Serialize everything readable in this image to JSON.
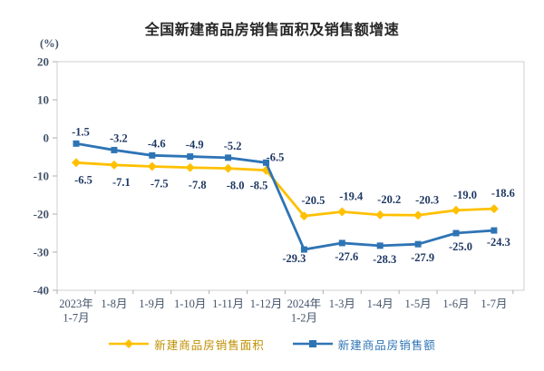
{
  "title": "全国新建商品房销售面积及销售额增速",
  "unit_label": "(%)",
  "colors": {
    "area_series": "#FFC000",
    "amount_series": "#2E74B5",
    "data_label": "#1F3864",
    "axis_label": "#44546A",
    "title_text": "#262626",
    "plot_border": "#D0CECE",
    "axis_tick": "#AFABAB",
    "legend_area_text": "#BF8F00",
    "legend_amount_text": "#2E74B5"
  },
  "chart_data": {
    "type": "line",
    "title": "全国新建商品房销售面积及销售额增速",
    "ylabel": "(%)",
    "ylim": [
      -40,
      20
    ],
    "ytick_step": 10,
    "yticks": [
      20,
      10,
      0,
      -10,
      -20,
      -30,
      -40
    ],
    "grid": false,
    "legend_position": "bottom",
    "data_labels": true,
    "categories": [
      "2023年\n1-7月",
      "1-8月",
      "1-9月",
      "1-10月",
      "1-11月",
      "1-12月",
      "2024年\n1-2月",
      "1-3月",
      "1-4月",
      "1-5月",
      "1-6月",
      "1-7月"
    ],
    "series": [
      {
        "id": "sales-area",
        "name": "新建商品房销售面积",
        "marker": "diamond",
        "color_key": "area_series",
        "values": [
          -6.5,
          -7.1,
          -7.5,
          -7.8,
          -8.0,
          -8.5,
          -20.5,
          -19.4,
          -20.2,
          -20.3,
          -19.0,
          -18.6
        ]
      },
      {
        "id": "sales-amount",
        "name": "新建商品房销售额",
        "marker": "square",
        "color_key": "amount_series",
        "values": [
          -1.5,
          -3.2,
          -4.6,
          -4.9,
          -5.2,
          -6.5,
          -29.3,
          -27.6,
          -28.3,
          -27.9,
          -25.0,
          -24.3
        ]
      }
    ]
  }
}
